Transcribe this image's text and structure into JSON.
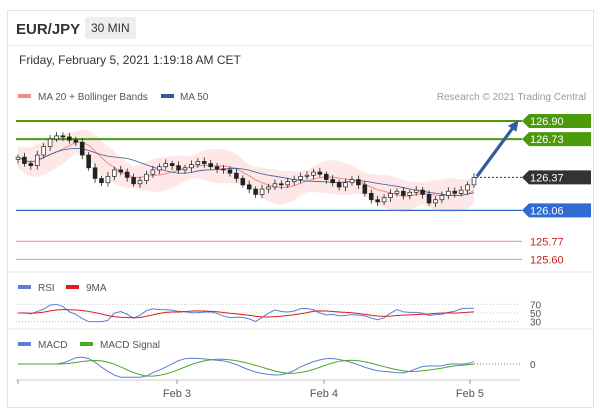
{
  "header": {
    "pair": "EUR/JPY",
    "interval": "30 MIN",
    "date": "Friday, February 5, 2021 1:19:18 AM CET"
  },
  "legend": {
    "ma20_bb": "MA 20 + Bollinger Bands",
    "ma50": "MA 50",
    "credit": "Research © 2021 Trading Central"
  },
  "colors": {
    "ma20": "#f08a8a",
    "ma50": "#2f5d9e",
    "resistance": "#4a9a0a",
    "support": "#2f6bd0",
    "level_red": "#e05a5a",
    "current": "#333333",
    "bb_fill": "#fde3e3",
    "rsi": "#5b7fd6",
    "rsi_ma": "#d81e1e",
    "macd": "#5b7fd6",
    "macd_signal": "#4aa52a",
    "arrow": "#2f5d9e"
  },
  "chart_data": [
    {
      "type": "candlestick",
      "ylim": [
        125.5,
        127.05
      ],
      "x_ticks": [
        "Feb 3",
        "Feb 4",
        "Feb 5"
      ],
      "price_levels": [
        {
          "label": "126.90",
          "value": 126.9,
          "kind": "resistance"
        },
        {
          "label": "126.73",
          "value": 126.73,
          "kind": "resistance"
        },
        {
          "label": "126.37",
          "value": 126.37,
          "kind": "current"
        },
        {
          "label": "126.06",
          "value": 126.06,
          "kind": "support"
        },
        {
          "label": "125.77",
          "value": 125.77,
          "kind": "red"
        },
        {
          "label": "125.60",
          "value": 125.6,
          "kind": "red"
        }
      ],
      "series": [
        {
          "name": "MA 20 + Bollinger Bands"
        },
        {
          "name": "MA 50"
        }
      ],
      "close_path": [
        126.56,
        126.5,
        126.48,
        126.58,
        126.66,
        126.73,
        126.76,
        126.75,
        126.72,
        126.7,
        126.58,
        126.46,
        126.36,
        126.32,
        126.38,
        126.44,
        126.42,
        126.37,
        126.31,
        126.34,
        126.4,
        126.44,
        126.47,
        126.5,
        126.48,
        126.44,
        126.46,
        126.49,
        126.52,
        126.5,
        126.47,
        126.45,
        126.44,
        126.41,
        126.36,
        126.3,
        126.26,
        126.21,
        126.26,
        126.28,
        126.31,
        126.3,
        126.33,
        126.35,
        126.38,
        126.39,
        126.42,
        126.4,
        126.35,
        126.32,
        126.28,
        126.32,
        126.35,
        126.3,
        126.22,
        126.16,
        126.14,
        126.18,
        126.22,
        126.24,
        126.2,
        126.23,
        126.25,
        126.21,
        126.13,
        126.16,
        126.2,
        126.24,
        126.22,
        126.25,
        126.3,
        126.37
      ],
      "arrow": {
        "from": 126.37,
        "to": 126.9
      }
    },
    {
      "type": "line",
      "title": "RSI",
      "levels": [
        70,
        50,
        30
      ],
      "series": [
        {
          "name": "RSI"
        },
        {
          "name": "9MA"
        }
      ]
    },
    {
      "type": "line",
      "title": "MACD",
      "levels": [
        0
      ],
      "series": [
        {
          "name": "MACD"
        },
        {
          "name": "MACD Signal"
        }
      ]
    }
  ]
}
